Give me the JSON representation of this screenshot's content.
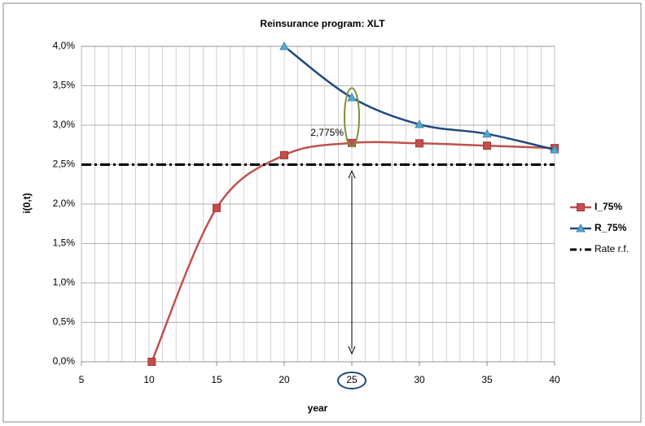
{
  "chart_data": {
    "type": "line",
    "title": "Reinsurance program: XLT",
    "x_label": "year",
    "y_label": "i(0,t)",
    "xlim": [
      5,
      40
    ],
    "xticks": [
      5,
      10,
      15,
      20,
      25,
      30,
      35,
      40
    ],
    "ylim": [
      0,
      4
    ],
    "yticks": [
      {
        "value": 0,
        "label": "0,0%"
      },
      {
        "value": 0.5,
        "label": "0,5%"
      },
      {
        "value": 1,
        "label": "1,0%"
      },
      {
        "value": 1.5,
        "label": "1,5%"
      },
      {
        "value": 2,
        "label": "2,0%"
      },
      {
        "value": 2.5,
        "label": "2,5%"
      },
      {
        "value": 3,
        "label": "3,0%"
      },
      {
        "value": 3.5,
        "label": "3,5%"
      },
      {
        "value": 4,
        "label": "4,0%"
      }
    ],
    "grid": true,
    "legend": "right",
    "series": [
      {
        "name": "I_75%",
        "color": "#c0504d",
        "marker": "square",
        "x": [
          10.2,
          15,
          20,
          25,
          30,
          35,
          40
        ],
        "values": [
          0,
          1.95,
          2.62,
          2.775,
          2.77,
          2.74,
          2.71
        ],
        "value_labels": [
          null,
          null,
          null,
          "2,775%",
          null,
          null,
          null
        ]
      },
      {
        "name": "R_75%",
        "color": "#1f497d",
        "marker": "triangle",
        "x": [
          20,
          25,
          30,
          35,
          40
        ],
        "values": [
          4.0,
          3.35,
          3.01,
          2.89,
          2.69
        ]
      },
      {
        "name": "Rate r.f.",
        "color": "#000000",
        "marker": "none",
        "x": [
          5,
          40
        ],
        "values": [
          2.5,
          2.5
        ]
      }
    ]
  }
}
